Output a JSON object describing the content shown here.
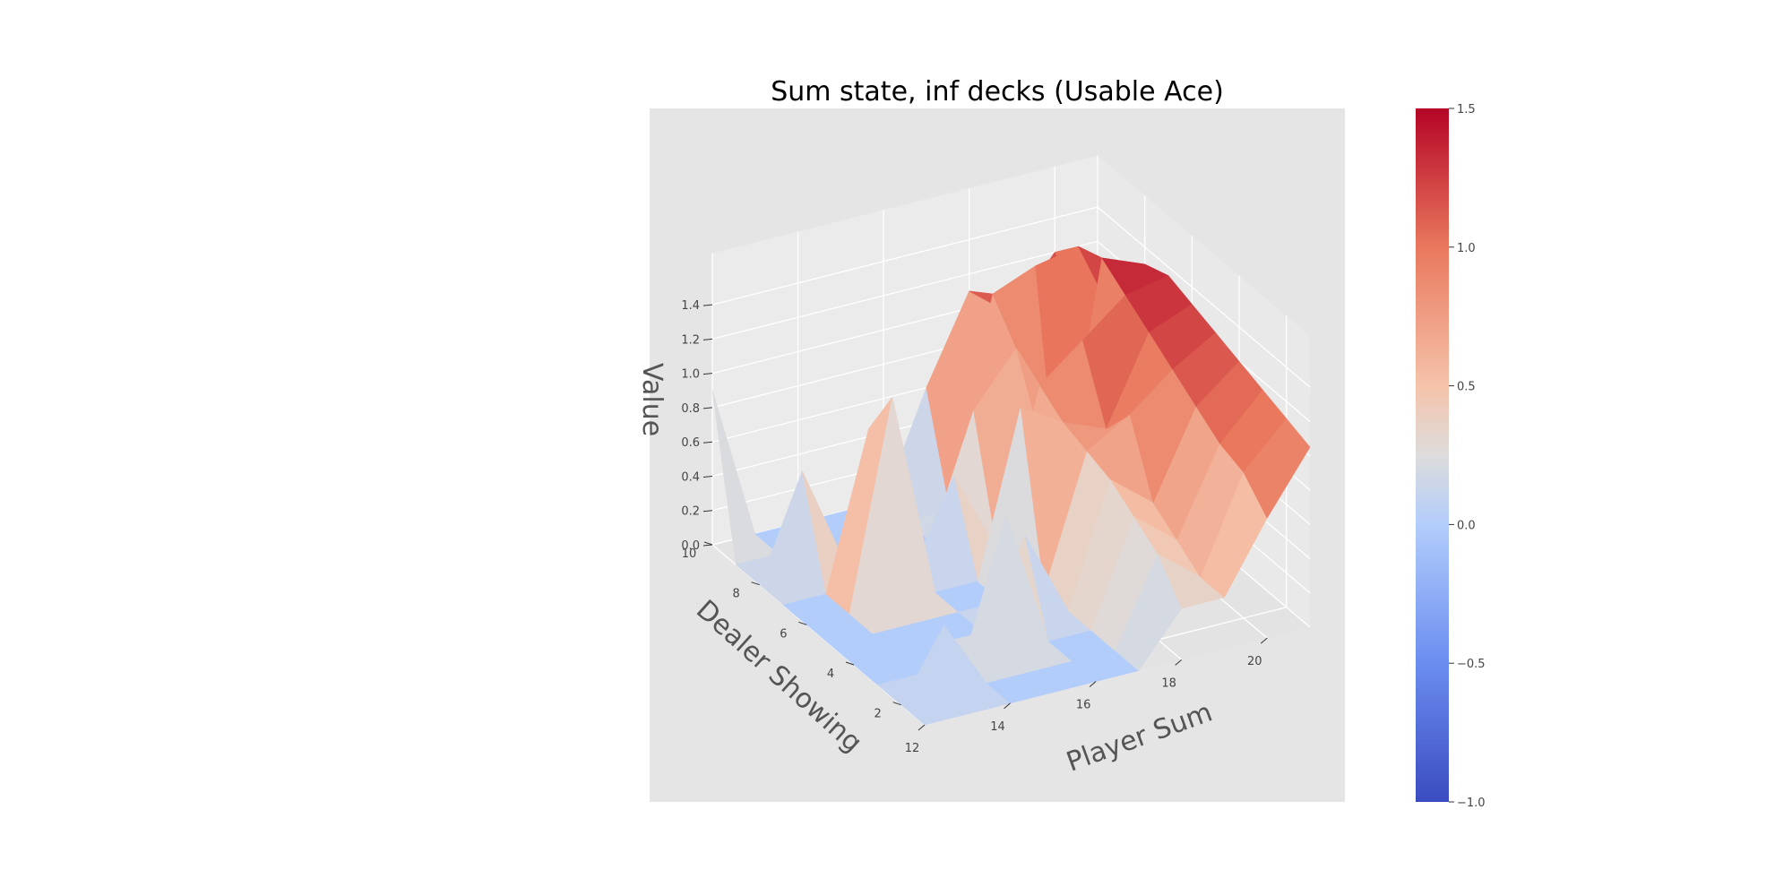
{
  "chart_data": {
    "type": "surface3d",
    "title": "Sum state, inf decks (Usable Ace)",
    "xlabel": "Player Sum",
    "ylabel": "Dealer Showing",
    "zlabel": "Value",
    "x_ticks": [
      "12",
      "14",
      "16",
      "18",
      "20"
    ],
    "y_ticks": [
      "2",
      "4",
      "6",
      "8",
      "10"
    ],
    "z_ticks": [
      "0.0",
      "0.2",
      "0.4",
      "0.6",
      "0.8",
      "1.0",
      "1.2",
      "1.4"
    ],
    "colorbar_ticks": [
      "−1.0",
      "−0.5",
      "0.0",
      "0.5",
      "1.0",
      "1.5"
    ],
    "colormap": "coolwarm",
    "vmin": -1.0,
    "vmax": 1.5,
    "xlim": [
      12,
      21
    ],
    "ylim": [
      1,
      10
    ],
    "zlim": [
      0,
      1.5
    ],
    "x": [
      12,
      13,
      14,
      15,
      16,
      17,
      18,
      19,
      20,
      21
    ],
    "y": [
      1,
      2,
      3,
      4,
      5,
      6,
      7,
      8,
      9,
      10
    ],
    "z": [
      [
        0.0,
        0.0,
        0.0,
        0.0,
        0.0,
        0.0,
        0.3,
        0.3,
        0.7,
        1.05
      ],
      [
        0.0,
        0.4,
        0.0,
        0.0,
        0.0,
        0.0,
        0.5,
        0.3,
        0.85,
        1.1
      ],
      [
        0.0,
        0.0,
        0.0,
        0.8,
        0.0,
        0.0,
        0.6,
        0.4,
        0.9,
        1.15
      ],
      [
        0.0,
        0.0,
        0.0,
        0.0,
        0.5,
        0.0,
        0.7,
        0.5,
        1.0,
        1.2
      ],
      [
        0.0,
        0.0,
        0.0,
        0.0,
        0.0,
        0.0,
        0.75,
        0.9,
        1.1,
        1.25
      ],
      [
        0.0,
        0.0,
        1.2,
        0.0,
        0.0,
        0.95,
        0.8,
        0.7,
        1.2,
        1.3
      ],
      [
        0.0,
        0.0,
        0.9,
        0.0,
        0.5,
        0.0,
        0.9,
        1.1,
        1.3,
        1.35
      ],
      [
        0.0,
        0.6,
        0.0,
        0.0,
        0.0,
        0.7,
        1.0,
        0.0,
        1.4,
        1.3
      ],
      [
        0.0,
        0.0,
        0.0,
        0.0,
        0.0,
        0.0,
        1.2,
        1.3,
        1.35,
        0.8
      ],
      [
        0.9,
        0.0,
        0.0,
        0.0,
        0.0,
        0.6,
        1.1,
        0.9,
        1.2,
        0.7
      ]
    ]
  }
}
